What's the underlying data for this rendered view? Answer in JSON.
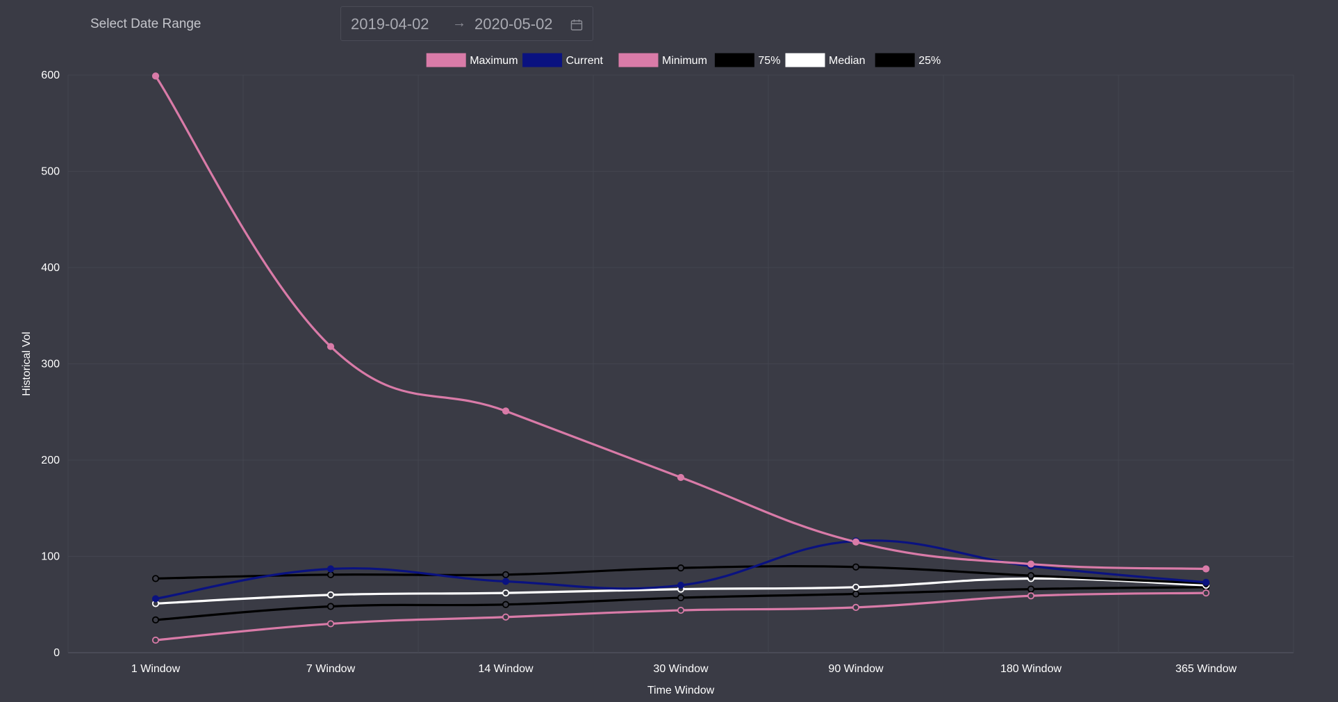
{
  "date_range": {
    "label": "Select Date Range",
    "start": "2019-04-02",
    "end": "2020-05-02",
    "arrow": "→"
  },
  "chart_data": {
    "type": "line",
    "title": "",
    "xlabel": "Time Window",
    "ylabel": "Historical Vol",
    "categories": [
      "1 Window",
      "7 Window",
      "14 Window",
      "30 Window",
      "90 Window",
      "180 Window",
      "365 Window"
    ],
    "ylim": [
      0,
      600
    ],
    "yticks": [
      0,
      100,
      200,
      300,
      400,
      500,
      600
    ],
    "grid": true,
    "legend_position": "top",
    "smooth": true,
    "series": [
      {
        "name": "Maximum",
        "color": "#d97ba8",
        "values": [
          599,
          318,
          251,
          182,
          115,
          92,
          87
        ],
        "point_fill": "#d97ba8"
      },
      {
        "name": "Current",
        "color": "#0a1280",
        "values": [
          56,
          87,
          74,
          70,
          116,
          90,
          73
        ],
        "point_fill": "#0a1280"
      },
      {
        "name": "Minimum",
        "color": "#d97ba8",
        "values": [
          13,
          30,
          37,
          44,
          47,
          59,
          62
        ],
        "point_fill": "#3a3b45"
      },
      {
        "name": "75%",
        "color": "#000000",
        "values": [
          77,
          81,
          81,
          88,
          89,
          80,
          72
        ],
        "point_fill": "#3a3b45"
      },
      {
        "name": "Median",
        "color": "#ffffff",
        "values": [
          51,
          60,
          62,
          66,
          68,
          77,
          70
        ],
        "point_fill": "#3a3b45"
      },
      {
        "name": "25%",
        "color": "#000000",
        "values": [
          34,
          48,
          50,
          57,
          61,
          66,
          68
        ],
        "point_fill": "#3a3b45"
      }
    ]
  }
}
